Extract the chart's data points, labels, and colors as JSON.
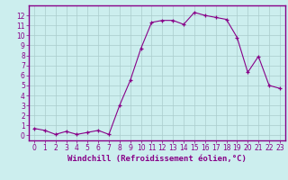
{
  "x": [
    0,
    1,
    2,
    3,
    4,
    5,
    6,
    7,
    8,
    9,
    10,
    11,
    12,
    13,
    14,
    15,
    16,
    17,
    18,
    19,
    20,
    21,
    22,
    23
  ],
  "y": [
    0.7,
    0.5,
    0.1,
    0.4,
    0.1,
    0.3,
    0.5,
    0.1,
    3.0,
    5.5,
    8.7,
    11.3,
    11.5,
    11.5,
    11.1,
    12.3,
    12.0,
    11.8,
    11.6,
    9.8,
    6.3,
    7.9,
    5.0,
    4.7
  ],
  "line_color": "#880088",
  "marker": "+",
  "marker_color": "#880088",
  "bg_color": "#cceeee",
  "grid_color": "#aacccc",
  "xlabel": "Windchill (Refroidissement éolien,°C)",
  "tick_color": "#880088",
  "spine_color": "#880088",
  "xlim": [
    -0.5,
    23.5
  ],
  "ylim": [
    -0.5,
    13.0
  ],
  "yticks": [
    0,
    1,
    2,
    3,
    4,
    5,
    6,
    7,
    8,
    9,
    10,
    11,
    12
  ],
  "xticks": [
    0,
    1,
    2,
    3,
    4,
    5,
    6,
    7,
    8,
    9,
    10,
    11,
    12,
    13,
    14,
    15,
    16,
    17,
    18,
    19,
    20,
    21,
    22,
    23
  ],
  "tick_fontsize": 5.5,
  "xlabel_fontsize": 6.5,
  "xlabel_color": "#880088"
}
